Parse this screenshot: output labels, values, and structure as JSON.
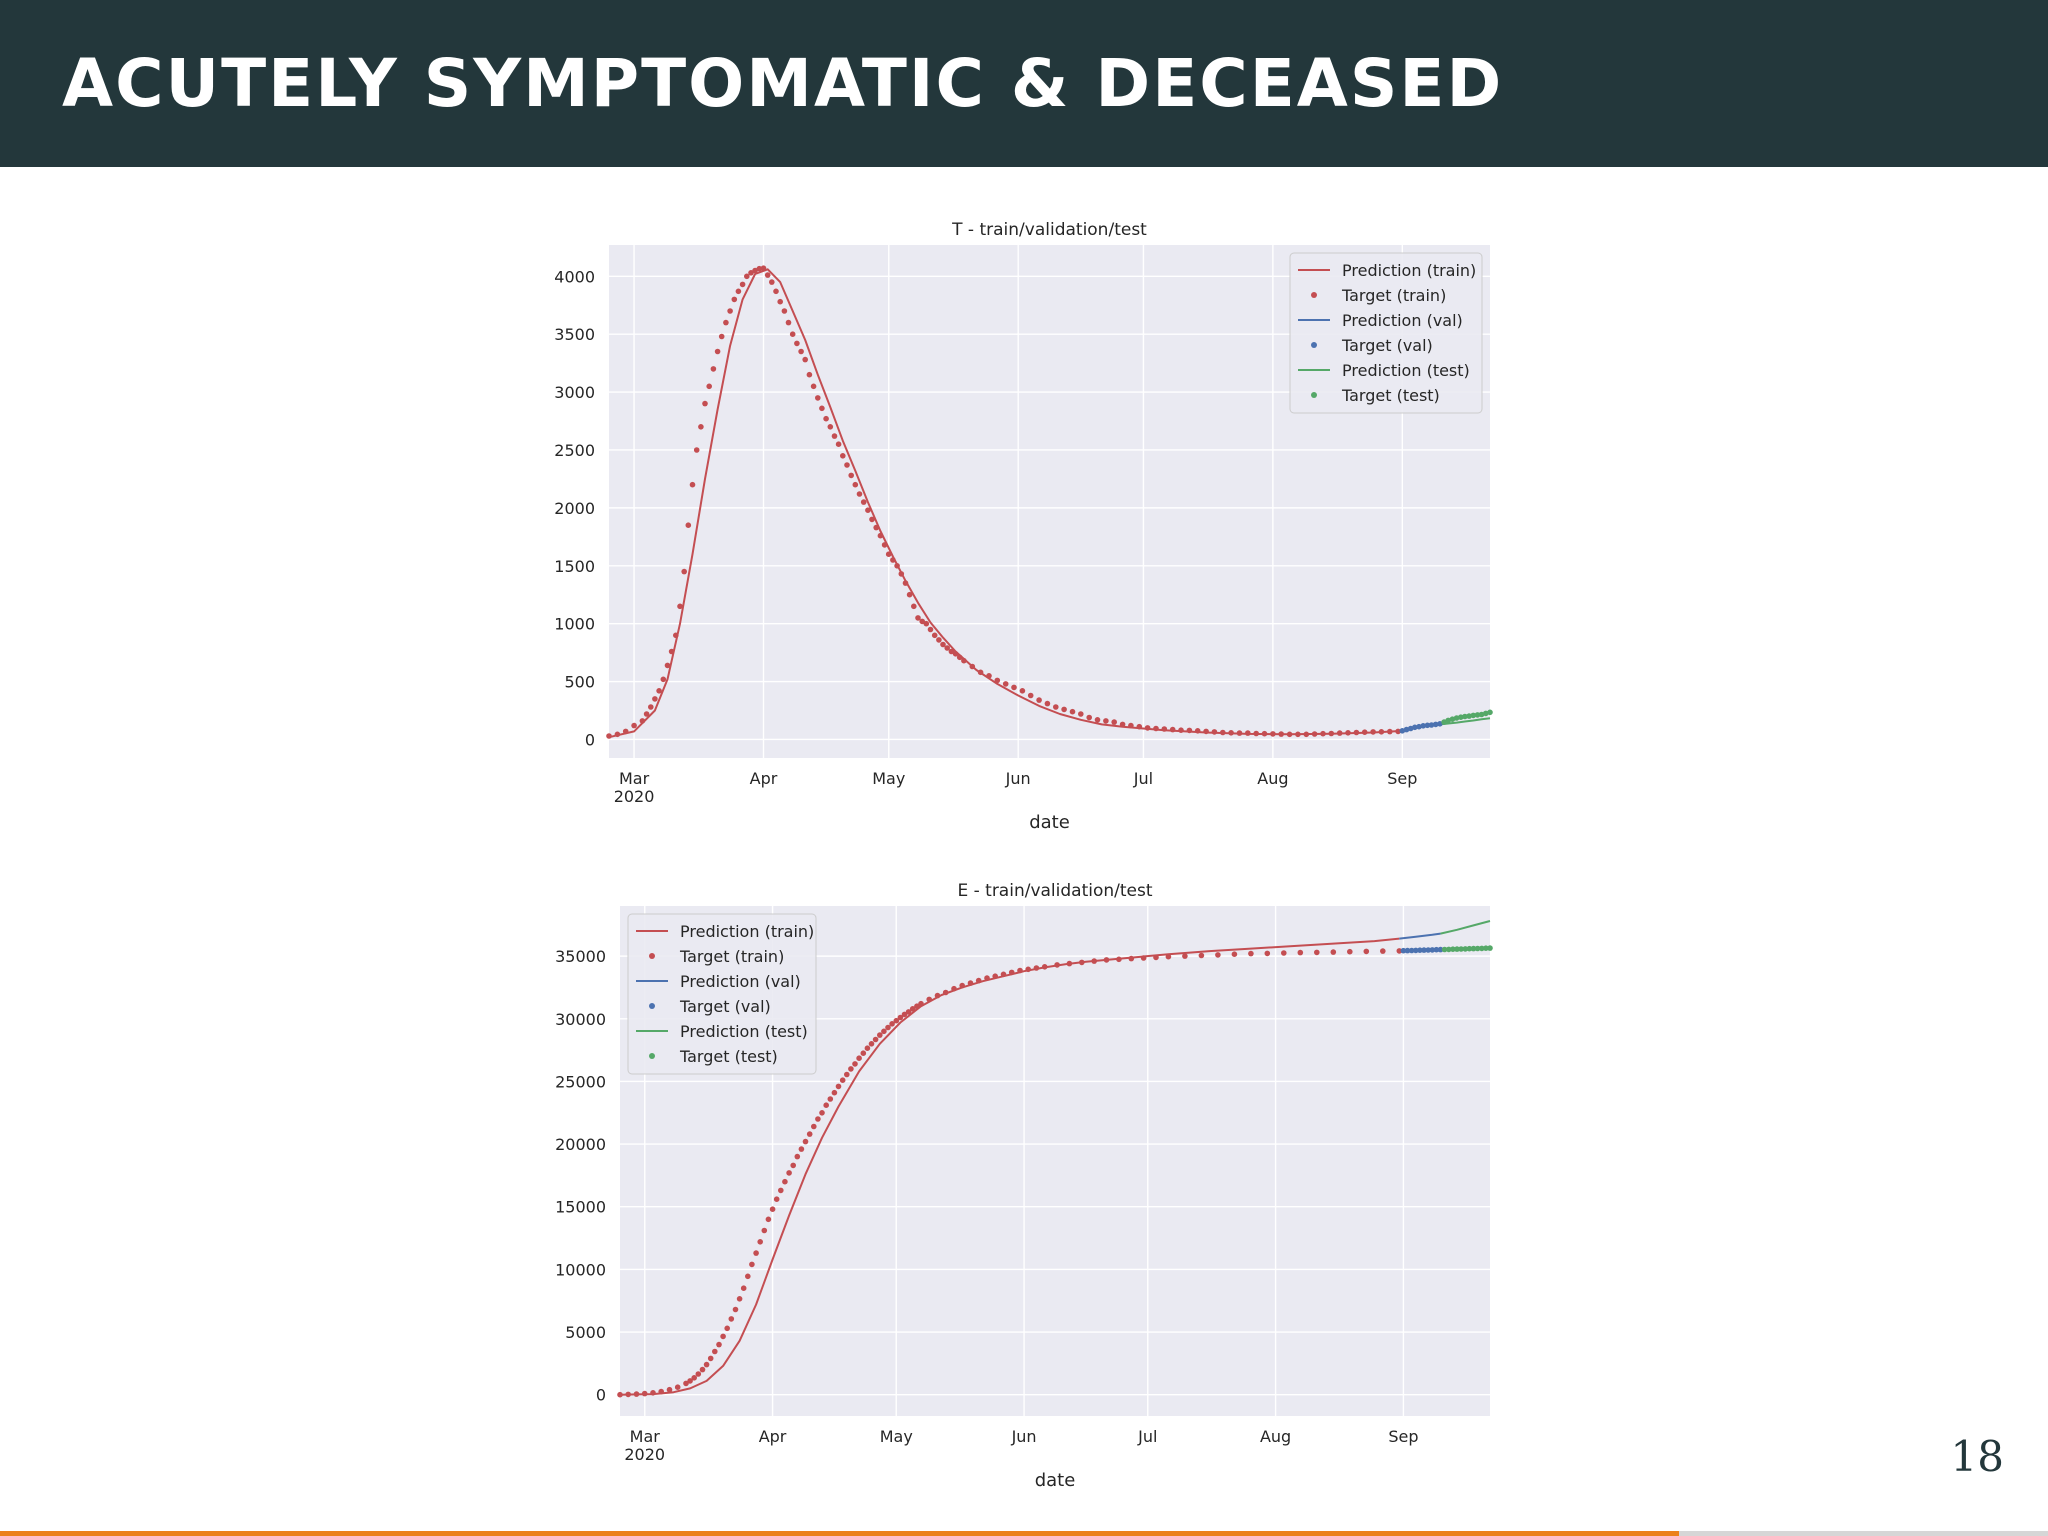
{
  "slide": {
    "title": "ACUTELY SYMPTOMATIC & DECEASED",
    "page_number": "18",
    "progress": 0.82,
    "colors": {
      "header_bg": "#23373b",
      "accent": "#eb811b",
      "train": "#c44e52",
      "val": "#4c72b0",
      "test": "#55a868",
      "plot_bg": "#eaeaf2"
    }
  },
  "chart_data": [
    {
      "type": "line",
      "title": "T - train/validation/test",
      "xlabel": "date",
      "ylabel": "",
      "x_ticks": [
        {
          "day": 3,
          "label": "Mar",
          "sublabel": "2020"
        },
        {
          "day": 34,
          "label": "Apr",
          "sublabel": ""
        },
        {
          "day": 64,
          "label": "May",
          "sublabel": ""
        },
        {
          "day": 95,
          "label": "Jun",
          "sublabel": ""
        },
        {
          "day": 125,
          "label": "Jul",
          "sublabel": ""
        },
        {
          "day": 156,
          "label": "Aug",
          "sublabel": ""
        },
        {
          "day": 187,
          "label": "Sep",
          "sublabel": ""
        }
      ],
      "xlim": [
        -3,
        208
      ],
      "ylim": [
        -160,
        4270
      ],
      "yticks": [
        0,
        500,
        1000,
        1500,
        2000,
        2500,
        3000,
        3500,
        4000
      ],
      "legend": {
        "location": "top-right",
        "entries": [
          {
            "label": "Prediction (train)",
            "kind": "line",
            "color": "#c44e52"
          },
          {
            "label": "Target (train)",
            "kind": "dot",
            "color": "#c44e52"
          },
          {
            "label": "Prediction (val)",
            "kind": "line",
            "color": "#4c72b0"
          },
          {
            "label": "Target (val)",
            "kind": "dot",
            "color": "#4c72b0"
          },
          {
            "label": "Prediction (test)",
            "kind": "line",
            "color": "#55a868"
          },
          {
            "label": "Target (test)",
            "kind": "dot",
            "color": "#55a868"
          }
        ]
      },
      "series": [
        {
          "name": "Prediction (train)",
          "kind": "line",
          "color": "#c44e52",
          "x": [
            -3,
            3,
            8,
            11,
            14,
            17,
            20,
            23,
            26,
            29,
            32,
            35,
            38,
            41,
            44,
            47,
            50,
            53,
            56,
            59,
            62,
            65,
            68,
            71,
            74,
            77,
            80,
            85,
            90,
            95,
            100,
            105,
            110,
            115,
            120,
            125,
            130,
            140,
            150,
            160,
            170,
            180,
            186
          ],
          "y": [
            20,
            70,
            250,
            520,
            1000,
            1600,
            2250,
            2850,
            3400,
            3800,
            4020,
            4060,
            3950,
            3700,
            3450,
            3150,
            2870,
            2580,
            2320,
            2050,
            1800,
            1580,
            1370,
            1180,
            1010,
            880,
            760,
            600,
            480,
            380,
            290,
            220,
            170,
            130,
            110,
            95,
            80,
            60,
            48,
            45,
            50,
            60,
            72
          ]
        },
        {
          "name": "Target (train)",
          "kind": "dots",
          "color": "#c44e52",
          "x": [
            -3,
            -1,
            1,
            3,
            5,
            6,
            7,
            8,
            9,
            10,
            11,
            12,
            13,
            14,
            15,
            16,
            17,
            18,
            19,
            20,
            21,
            22,
            23,
            24,
            25,
            26,
            27,
            28,
            29,
            30,
            31,
            32,
            33,
            34,
            35,
            36,
            37,
            38,
            39,
            40,
            41,
            42,
            43,
            44,
            45,
            46,
            47,
            48,
            49,
            50,
            51,
            52,
            53,
            54,
            55,
            56,
            57,
            58,
            59,
            60,
            61,
            62,
            63,
            64,
            65,
            66,
            67,
            68,
            69,
            70,
            71,
            72,
            73,
            74,
            75,
            76,
            77,
            78,
            79,
            80,
            81,
            82,
            84,
            86,
            88,
            90,
            92,
            94,
            96,
            98,
            100,
            102,
            104,
            106,
            108,
            110,
            112,
            114,
            116,
            118,
            120,
            122,
            124,
            126,
            128,
            130,
            132,
            134,
            136,
            138,
            140,
            142,
            144,
            146,
            148,
            150,
            152,
            154,
            156,
            158,
            160,
            162,
            164,
            166,
            168,
            170,
            172,
            174,
            176,
            178,
            180,
            182,
            184,
            186
          ],
          "y": [
            30,
            45,
            70,
            120,
            160,
            220,
            280,
            350,
            420,
            520,
            640,
            760,
            900,
            1150,
            1450,
            1850,
            2200,
            2500,
            2700,
            2900,
            3050,
            3200,
            3350,
            3480,
            3600,
            3700,
            3800,
            3870,
            3930,
            4000,
            4030,
            4050,
            4065,
            4070,
            4010,
            3950,
            3870,
            3780,
            3700,
            3600,
            3500,
            3420,
            3350,
            3280,
            3150,
            3050,
            2950,
            2860,
            2770,
            2700,
            2620,
            2550,
            2450,
            2370,
            2280,
            2200,
            2120,
            2050,
            1980,
            1900,
            1830,
            1760,
            1680,
            1600,
            1550,
            1500,
            1430,
            1350,
            1250,
            1150,
            1050,
            1020,
            1000,
            950,
            900,
            860,
            820,
            790,
            760,
            740,
            710,
            680,
            630,
            580,
            550,
            510,
            480,
            450,
            420,
            380,
            340,
            310,
            280,
            260,
            240,
            220,
            190,
            170,
            160,
            150,
            130,
            120,
            110,
            100,
            95,
            90,
            85,
            80,
            78,
            75,
            70,
            65,
            60,
            58,
            55,
            55,
            52,
            50,
            48,
            46,
            45,
            45,
            45,
            47,
            50,
            52,
            55,
            58,
            60,
            63,
            65,
            66,
            68,
            70
          ]
        },
        {
          "name": "Prediction (val)",
          "kind": "line",
          "color": "#4c72b0",
          "x": [
            186,
            188,
            190,
            192,
            194,
            196
          ],
          "y": [
            72,
            85,
            100,
            112,
            122,
            130
          ]
        },
        {
          "name": "Target (val)",
          "kind": "dots",
          "color": "#4c72b0",
          "x": [
            187,
            188,
            189,
            190,
            191,
            192,
            193,
            194,
            195,
            196
          ],
          "y": [
            75,
            85,
            95,
            105,
            110,
            118,
            122,
            125,
            130,
            135
          ]
        },
        {
          "name": "Prediction (test)",
          "kind": "line",
          "color": "#55a868",
          "x": [
            196,
            198,
            200,
            202,
            204,
            206,
            208
          ],
          "y": [
            130,
            138,
            146,
            155,
            164,
            174,
            184
          ]
        },
        {
          "name": "Target (test)",
          "kind": "dots",
          "color": "#55a868",
          "x": [
            197,
            198,
            199,
            200,
            201,
            202,
            203,
            204,
            205,
            206,
            207,
            208
          ],
          "y": [
            150,
            165,
            175,
            185,
            192,
            198,
            202,
            208,
            212,
            216,
            225,
            235
          ]
        }
      ]
    },
    {
      "type": "line",
      "title": "E - train/validation/test",
      "xlabel": "date",
      "ylabel": "",
      "x_ticks": [
        {
          "day": 3,
          "label": "Mar",
          "sublabel": "2020"
        },
        {
          "day": 34,
          "label": "Apr",
          "sublabel": ""
        },
        {
          "day": 64,
          "label": "May",
          "sublabel": ""
        },
        {
          "day": 95,
          "label": "Jun",
          "sublabel": ""
        },
        {
          "day": 125,
          "label": "Jul",
          "sublabel": ""
        },
        {
          "day": 156,
          "label": "Aug",
          "sublabel": ""
        },
        {
          "day": 187,
          "label": "Sep",
          "sublabel": ""
        }
      ],
      "xlim": [
        -3,
        208
      ],
      "ylim": [
        -1700,
        39000
      ],
      "yticks": [
        0,
        5000,
        10000,
        15000,
        20000,
        25000,
        30000,
        35000
      ],
      "legend": {
        "location": "top-left",
        "entries": [
          {
            "label": "Prediction (train)",
            "kind": "line",
            "color": "#c44e52"
          },
          {
            "label": "Target (train)",
            "kind": "dot",
            "color": "#c44e52"
          },
          {
            "label": "Prediction (val)",
            "kind": "line",
            "color": "#4c72b0"
          },
          {
            "label": "Target (val)",
            "kind": "dot",
            "color": "#4c72b0"
          },
          {
            "label": "Prediction (test)",
            "kind": "line",
            "color": "#55a868"
          },
          {
            "label": "Target (test)",
            "kind": "dot",
            "color": "#55a868"
          }
        ]
      },
      "series": [
        {
          "name": "Prediction (train)",
          "kind": "line",
          "color": "#c44e52",
          "x": [
            -3,
            5,
            10,
            14,
            18,
            22,
            26,
            30,
            34,
            38,
            42,
            46,
            50,
            55,
            60,
            65,
            70,
            75,
            80,
            85,
            90,
            95,
            100,
            105,
            110,
            115,
            120,
            130,
            140,
            150,
            160,
            170,
            180,
            186
          ],
          "y": [
            0,
            50,
            200,
            500,
            1100,
            2300,
            4300,
            7200,
            10800,
            14300,
            17600,
            20500,
            23000,
            25800,
            28000,
            29700,
            31000,
            31900,
            32500,
            33000,
            33400,
            33800,
            34100,
            34350,
            34550,
            34700,
            34850,
            35150,
            35400,
            35600,
            35800,
            36000,
            36200,
            36400
          ]
        },
        {
          "name": "Target (train)",
          "kind": "dots",
          "color": "#c44e52",
          "x": [
            -3,
            -1,
            1,
            3,
            5,
            7,
            9,
            11,
            13,
            14,
            15,
            16,
            17,
            18,
            19,
            20,
            21,
            22,
            23,
            24,
            25,
            26,
            27,
            28,
            29,
            30,
            31,
            32,
            33,
            34,
            35,
            36,
            37,
            38,
            39,
            40,
            41,
            42,
            43,
            44,
            45,
            46,
            47,
            48,
            49,
            50,
            51,
            52,
            53,
            54,
            55,
            56,
            57,
            58,
            59,
            60,
            61,
            62,
            63,
            64,
            65,
            66,
            67,
            68,
            69,
            70,
            72,
            74,
            76,
            78,
            80,
            82,
            84,
            86,
            88,
            90,
            92,
            94,
            96,
            98,
            100,
            103,
            106,
            109,
            112,
            115,
            118,
            121,
            124,
            127,
            130,
            134,
            138,
            142,
            146,
            150,
            154,
            158,
            162,
            166,
            170,
            174,
            178,
            182,
            186
          ],
          "y": [
            0,
            20,
            50,
            90,
            150,
            250,
            400,
            600,
            900,
            1100,
            1350,
            1650,
            2000,
            2400,
            2900,
            3450,
            4000,
            4650,
            5300,
            6050,
            6800,
            7650,
            8500,
            9450,
            10400,
            11300,
            12200,
            13100,
            14000,
            14800,
            15600,
            16300,
            17000,
            17700,
            18300,
            19000,
            19600,
            20200,
            20800,
            21400,
            22000,
            22500,
            23100,
            23600,
            24100,
            24600,
            25100,
            25550,
            26000,
            26400,
            26850,
            27250,
            27650,
            28000,
            28350,
            28700,
            29000,
            29300,
            29600,
            29850,
            30100,
            30350,
            30550,
            30800,
            31000,
            31200,
            31550,
            31850,
            32100,
            32400,
            32650,
            32850,
            33050,
            33250,
            33400,
            33550,
            33700,
            33850,
            33950,
            34050,
            34150,
            34300,
            34400,
            34500,
            34600,
            34700,
            34750,
            34800,
            34850,
            34900,
            34950,
            35000,
            35050,
            35100,
            35150,
            35200,
            35220,
            35250,
            35280,
            35300,
            35320,
            35350,
            35380,
            35400,
            35420
          ]
        },
        {
          "name": "Prediction (val)",
          "kind": "line",
          "color": "#4c72b0",
          "x": [
            186,
            190,
            194,
            196
          ],
          "y": [
            36400,
            36550,
            36700,
            36800
          ]
        },
        {
          "name": "Target (val)",
          "kind": "dots",
          "color": "#4c72b0",
          "x": [
            187,
            188,
            189,
            190,
            191,
            192,
            193,
            194,
            195,
            196
          ],
          "y": [
            35430,
            35440,
            35450,
            35460,
            35470,
            35480,
            35490,
            35500,
            35510,
            35520
          ]
        },
        {
          "name": "Prediction (test)",
          "kind": "line",
          "color": "#55a868",
          "x": [
            196,
            200,
            204,
            208
          ],
          "y": [
            36800,
            37100,
            37450,
            37800
          ]
        },
        {
          "name": "Target (test)",
          "kind": "dots",
          "color": "#55a868",
          "x": [
            197,
            198,
            199,
            200,
            201,
            202,
            203,
            204,
            205,
            206,
            207,
            208
          ],
          "y": [
            35530,
            35540,
            35550,
            35560,
            35570,
            35580,
            35590,
            35600,
            35610,
            35620,
            35630,
            35640
          ]
        }
      ]
    }
  ]
}
